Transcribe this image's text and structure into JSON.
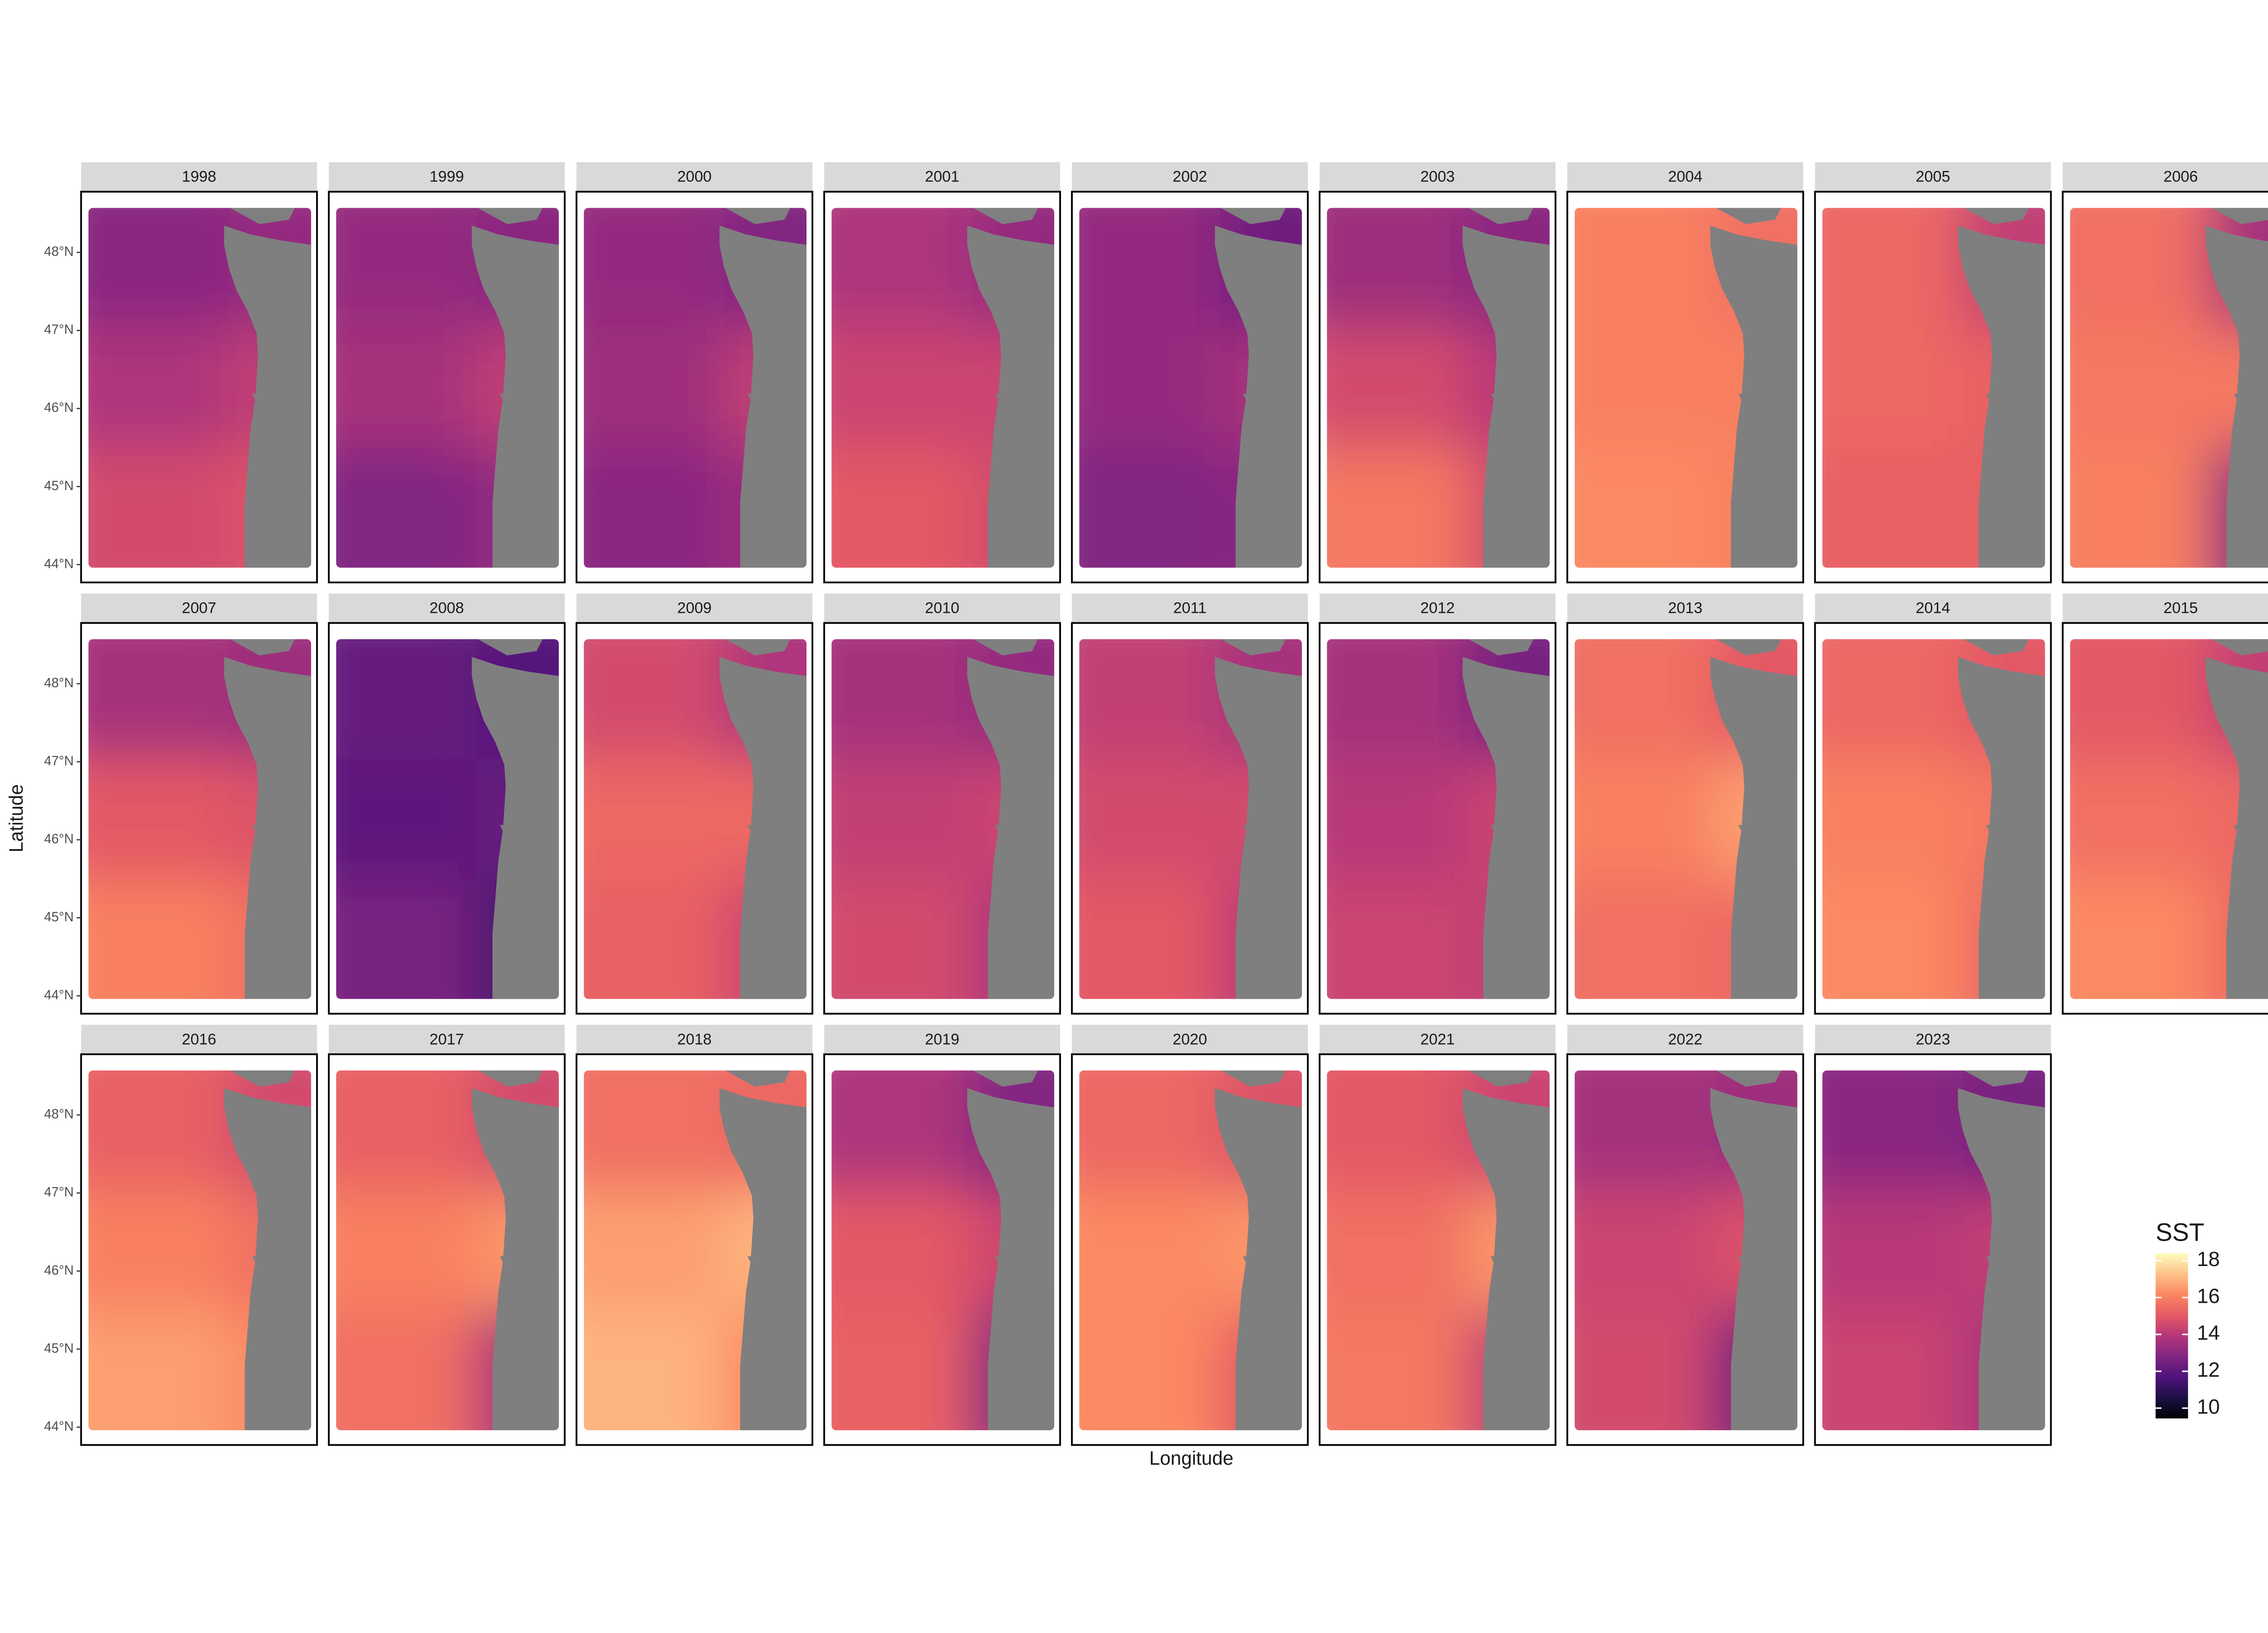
{
  "chart_data": {
    "type": "raster",
    "x_label": "Longitude",
    "y_label": "Latitude",
    "ylim": [
      43.96,
      48.57
    ],
    "yticks": [
      {
        "value": 44,
        "label": "44°N"
      },
      {
        "value": 45,
        "label": "45°N"
      },
      {
        "value": 46,
        "label": "46°N"
      },
      {
        "value": 47,
        "label": "47°N"
      },
      {
        "value": 48,
        "label": "48°N"
      }
    ],
    "legend": {
      "title": "SST",
      "limits": [
        9.44,
        18.4
      ],
      "ticks": [
        10,
        12,
        14,
        16,
        18
      ],
      "palette": [
        "#000004",
        "#1c1044",
        "#4f127b",
        "#812581",
        "#b5367a",
        "#e55964",
        "#fb8761",
        "#fec287",
        "#fcfdbf"
      ]
    },
    "land_color": "#7f7f7f",
    "panels": [
      {
        "year": "1998",
        "sst": [
          [
            13.0,
            13.2
          ],
          [
            13.8,
            14.2
          ],
          [
            14.6,
            14.8
          ]
        ]
      },
      {
        "year": "1999",
        "sst": [
          [
            13.2,
            13.0
          ],
          [
            13.6,
            14.2
          ],
          [
            12.8,
            13.2
          ]
        ]
      },
      {
        "year": "2000",
        "sst": [
          [
            13.2,
            12.8
          ],
          [
            13.4,
            14.2
          ],
          [
            13.0,
            13.4
          ]
        ]
      },
      {
        "year": "2001",
        "sst": [
          [
            13.8,
            13.2
          ],
          [
            14.4,
            14.4
          ],
          [
            15.0,
            14.6
          ]
        ]
      },
      {
        "year": "2002",
        "sst": [
          [
            13.2,
            12.4
          ],
          [
            13.2,
            13.6
          ],
          [
            12.8,
            13.0
          ]
        ]
      },
      {
        "year": "2003",
        "sst": [
          [
            13.4,
            13.0
          ],
          [
            14.6,
            14.0
          ],
          [
            15.8,
            14.6
          ]
        ]
      },
      {
        "year": "2004",
        "sst": [
          [
            16.0,
            15.6
          ],
          [
            16.0,
            16.0
          ],
          [
            16.2,
            16.0
          ]
        ]
      },
      {
        "year": "2005",
        "sst": [
          [
            15.4,
            14.2
          ],
          [
            15.4,
            15.2
          ],
          [
            15.2,
            15.2
          ]
        ]
      },
      {
        "year": "2006",
        "sst": [
          [
            15.6,
            13.6
          ],
          [
            15.8,
            15.8
          ],
          [
            16.0,
            13.0
          ]
        ]
      },
      {
        "year": "2007",
        "sst": [
          [
            13.6,
            13.4
          ],
          [
            15.0,
            14.8
          ],
          [
            16.0,
            15.6
          ]
        ]
      },
      {
        "year": "2008",
        "sst": [
          [
            12.2,
            11.8
          ],
          [
            12.0,
            12.2
          ],
          [
            12.6,
            11.4
          ]
        ]
      },
      {
        "year": "2009",
        "sst": [
          [
            14.6,
            13.8
          ],
          [
            15.4,
            15.4
          ],
          [
            15.2,
            14.4
          ]
        ]
      },
      {
        "year": "2010",
        "sst": [
          [
            13.6,
            13.2
          ],
          [
            14.2,
            14.4
          ],
          [
            14.6,
            13.8
          ]
        ]
      },
      {
        "year": "2011",
        "sst": [
          [
            14.2,
            13.6
          ],
          [
            14.6,
            14.6
          ],
          [
            15.0,
            14.0
          ]
        ]
      },
      {
        "year": "2012",
        "sst": [
          [
            13.6,
            12.6
          ],
          [
            14.0,
            14.4
          ],
          [
            14.4,
            14.2
          ]
        ]
      },
      {
        "year": "2013",
        "sst": [
          [
            15.6,
            15.0
          ],
          [
            16.0,
            16.6
          ],
          [
            15.6,
            15.4
          ]
        ]
      },
      {
        "year": "2014",
        "sst": [
          [
            15.4,
            15.0
          ],
          [
            16.0,
            15.8
          ],
          [
            16.2,
            15.4
          ]
        ]
      },
      {
        "year": "2015",
        "sst": [
          [
            15.0,
            14.2
          ],
          [
            15.6,
            15.4
          ],
          [
            16.2,
            15.4
          ]
        ]
      },
      {
        "year": "2016",
        "sst": [
          [
            15.2,
            14.6
          ],
          [
            16.0,
            15.6
          ],
          [
            16.6,
            16.2
          ]
        ]
      },
      {
        "year": "2017",
        "sst": [
          [
            15.2,
            14.6
          ],
          [
            16.0,
            16.4
          ],
          [
            15.6,
            13.6
          ]
        ]
      },
      {
        "year": "2018",
        "sst": [
          [
            15.6,
            15.4
          ],
          [
            16.6,
            17.0
          ],
          [
            17.0,
            16.2
          ]
        ]
      },
      {
        "year": "2019",
        "sst": [
          [
            13.8,
            12.8
          ],
          [
            15.0,
            14.4
          ],
          [
            15.2,
            12.8
          ]
        ]
      },
      {
        "year": "2020",
        "sst": [
          [
            15.4,
            14.8
          ],
          [
            16.2,
            16.4
          ],
          [
            16.2,
            15.0
          ]
        ]
      },
      {
        "year": "2021",
        "sst": [
          [
            15.0,
            14.4
          ],
          [
            15.6,
            16.4
          ],
          [
            15.8,
            14.2
          ]
        ]
      },
      {
        "year": "2022",
        "sst": [
          [
            13.6,
            13.4
          ],
          [
            14.4,
            14.8
          ],
          [
            14.6,
            12.4
          ]
        ]
      },
      {
        "year": "2023",
        "sst": [
          [
            13.0,
            12.6
          ],
          [
            14.0,
            14.2
          ],
          [
            14.4,
            13.6
          ]
        ]
      }
    ]
  }
}
